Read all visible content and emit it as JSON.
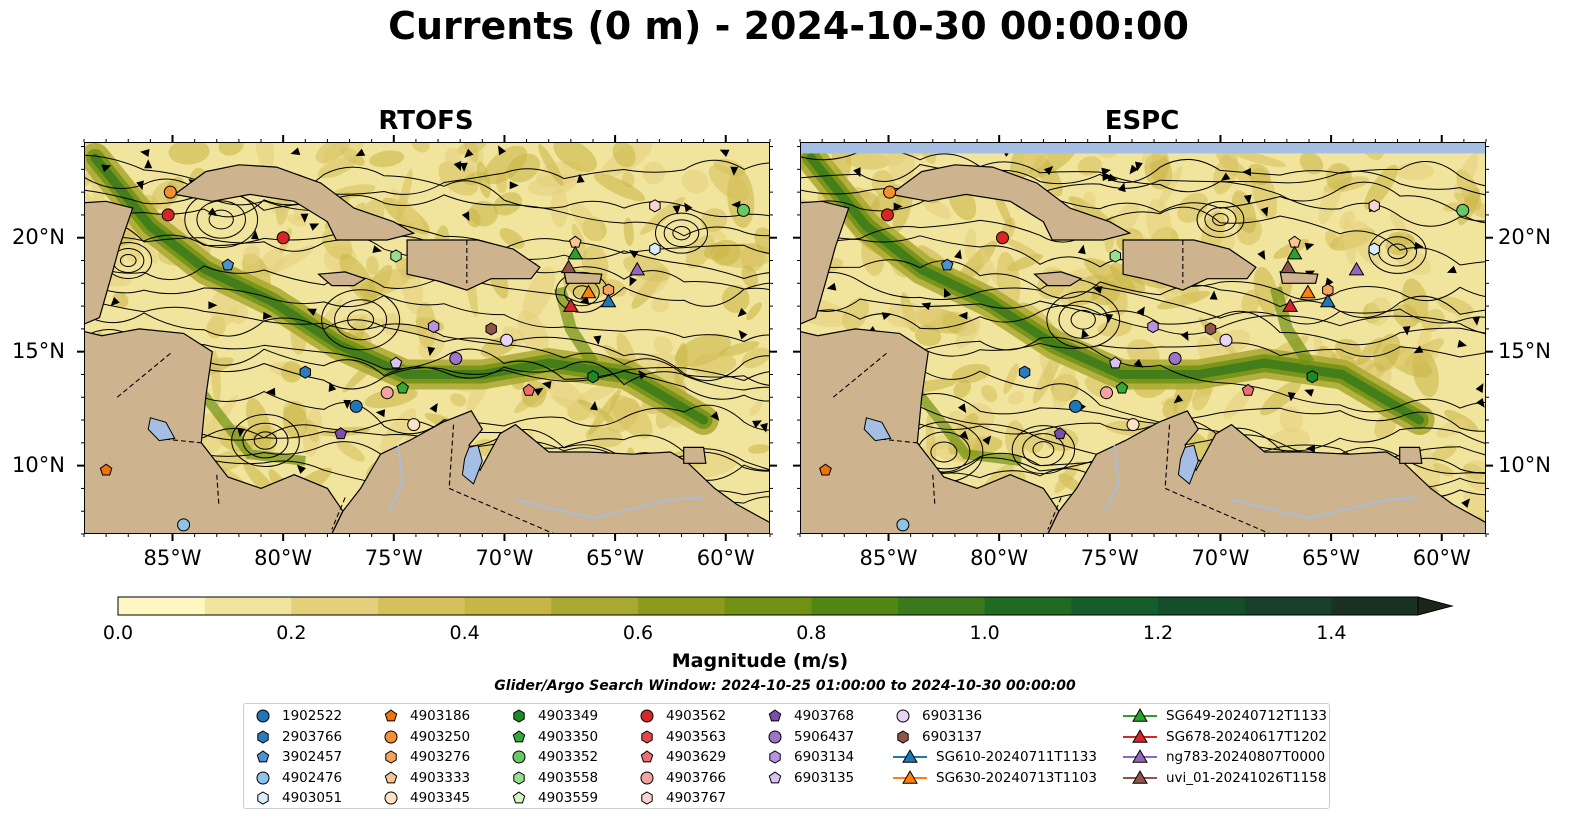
{
  "title": "Currents (0 m) - 2024-10-30 00:00:00",
  "panels": [
    {
      "name": "rtofs",
      "title": "RTOFS"
    },
    {
      "name": "espc",
      "title": "ESPC"
    }
  ],
  "map": {
    "lon_range": [
      -89,
      -58
    ],
    "lat_range": [
      7,
      24.2
    ],
    "lon_ticks": [
      "85°W",
      "80°W",
      "75°W",
      "70°W",
      "65°W",
      "60°W"
    ],
    "lat_ticks": [
      "20°N",
      "15°N",
      "10°N"
    ],
    "land_color": "#cdb48f",
    "water_color": "#a4bfe3"
  },
  "colorbar": {
    "label": "Magnitude (m/s)",
    "range": [
      0.0,
      1.5
    ],
    "ticks": [
      "0.0",
      "0.2",
      "0.4",
      "0.6",
      "0.8",
      "1.0",
      "1.2",
      "1.4"
    ],
    "extend": "max",
    "colors": [
      "#fdf8c2",
      "#f1e49c",
      "#e4cf7b",
      "#d6c05c",
      "#c8b546",
      "#a9a830",
      "#8d9a1c",
      "#709113",
      "#528714",
      "#3a7a1c",
      "#206b22",
      "#155d2a",
      "#154f2a",
      "#18402a",
      "#1a3222",
      "#1c261a"
    ]
  },
  "search_window": "Glider/Argo Search Window: 2024-10-25 01:00:00 to 2024-10-30 00:00:00",
  "legend": {
    "columns": [
      [
        {
          "label": "1902522",
          "marker": "circle",
          "color": "#1f77b4"
        },
        {
          "label": "2903766",
          "marker": "hexagon",
          "color": "#2a7bbd"
        },
        {
          "label": "3902457",
          "marker": "pentagon",
          "color": "#4c92cf"
        },
        {
          "label": "4902476",
          "marker": "circle",
          "color": "#8fc3ea"
        },
        {
          "label": "4903051",
          "marker": "hexagon",
          "color": "#d9eefb"
        }
      ],
      [
        {
          "label": "4903186",
          "marker": "pentagon",
          "color": "#f0720a"
        },
        {
          "label": "4903250",
          "marker": "circle",
          "color": "#f39031"
        },
        {
          "label": "4903276",
          "marker": "hexagon",
          "color": "#f7a35c"
        },
        {
          "label": "4903333",
          "marker": "pentagon",
          "color": "#f8c493"
        },
        {
          "label": "4903345",
          "marker": "circle",
          "color": "#fde3c6"
        }
      ],
      [
        {
          "label": "4903349",
          "marker": "hexagon",
          "color": "#1b8a27"
        },
        {
          "label": "4903350",
          "marker": "pentagon",
          "color": "#35a838"
        },
        {
          "label": "4903352",
          "marker": "circle",
          "color": "#67c864"
        },
        {
          "label": "4903558",
          "marker": "hexagon",
          "color": "#98de90"
        },
        {
          "label": "4903559",
          "marker": "pentagon",
          "color": "#d5f5c9"
        }
      ],
      [
        {
          "label": "4903562",
          "marker": "circle",
          "color": "#d62728"
        },
        {
          "label": "4903563",
          "marker": "hexagon",
          "color": "#e0474a"
        },
        {
          "label": "4903629",
          "marker": "pentagon",
          "color": "#ea6f71"
        },
        {
          "label": "4903766",
          "marker": "circle",
          "color": "#f4a3a2"
        },
        {
          "label": "4903767",
          "marker": "hexagon",
          "color": "#fbd3d2"
        }
      ],
      [
        {
          "label": "4903768",
          "marker": "pentagon",
          "color": "#7a4fa6"
        },
        {
          "label": "5906437",
          "marker": "circle",
          "color": "#9b75c9"
        },
        {
          "label": "6903134",
          "marker": "hexagon",
          "color": "#b993e0"
        },
        {
          "label": "6903135",
          "marker": "pentagon",
          "color": "#d9c2f2"
        }
      ],
      [
        {
          "label": "6903136",
          "marker": "circle",
          "color": "#e8d5f5"
        },
        {
          "label": "6903137",
          "marker": "hexagon",
          "color": "#8c564b"
        },
        {
          "label": "SG610-20240711T1133",
          "marker": "triangle",
          "color": "#1f77b4"
        },
        {
          "label": "SG630-20240713T1103",
          "marker": "triangle",
          "color": "#ff7f0e"
        }
      ],
      [
        {
          "label": "SG649-20240712T1133",
          "marker": "triangle",
          "color": "#2ca02c"
        },
        {
          "label": "SG678-20240617T1202",
          "marker": "triangle",
          "color": "#d62728"
        },
        {
          "label": "ng783-20240807T0000",
          "marker": "triangle",
          "color": "#9467bd"
        },
        {
          "label": "uvi_01-20241026T1158",
          "marker": "triangle",
          "color": "#8c564b"
        }
      ]
    ]
  },
  "observations": [
    {
      "id": "4903250",
      "lon": -85.1,
      "lat": 22.0
    },
    {
      "id": "4903562",
      "lon": -85.2,
      "lat": 21.0
    },
    {
      "id": "4903562",
      "lon": -80.0,
      "lat": 20.0
    },
    {
      "id": "3902457",
      "lon": -82.5,
      "lat": 18.8
    },
    {
      "id": "4903558",
      "lon": -74.9,
      "lat": 19.2
    },
    {
      "id": "4903333",
      "lon": -66.8,
      "lat": 19.8
    },
    {
      "id": "4903767",
      "lon": -63.2,
      "lat": 21.4
    },
    {
      "id": "4903051",
      "lon": -63.2,
      "lat": 19.5
    },
    {
      "id": "4903352",
      "lon": -59.2,
      "lat": 21.2
    },
    {
      "id": "6903134",
      "lon": -73.2,
      "lat": 16.1
    },
    {
      "id": "6903137",
      "lon": -70.6,
      "lat": 16.0
    },
    {
      "id": "6903136",
      "lon": -69.9,
      "lat": 15.5
    },
    {
      "id": "5906437",
      "lon": -72.2,
      "lat": 14.7
    },
    {
      "id": "6903135",
      "lon": -74.9,
      "lat": 14.5
    },
    {
      "id": "2903766",
      "lon": -79.0,
      "lat": 14.1
    },
    {
      "id": "4903350",
      "lon": -74.6,
      "lat": 13.4
    },
    {
      "id": "4903766",
      "lon": -75.3,
      "lat": 13.2
    },
    {
      "id": "1902522",
      "lon": -76.7,
      "lat": 12.6
    },
    {
      "id": "4903629",
      "lon": -68.9,
      "lat": 13.3
    },
    {
      "id": "4903349",
      "lon": -66.0,
      "lat": 13.9
    },
    {
      "id": "4903345",
      "lon": -74.1,
      "lat": 11.8
    },
    {
      "id": "4903768",
      "lon": -77.4,
      "lat": 11.4
    },
    {
      "id": "4903186",
      "lon": -88.0,
      "lat": 9.8
    },
    {
      "id": "4902476",
      "lon": -84.5,
      "lat": 7.4
    },
    {
      "id": "4903276",
      "lon": -65.3,
      "lat": 17.7
    },
    {
      "id": "SG649-20240712T1133",
      "lon": -66.8,
      "lat": 19.3
    },
    {
      "id": "uvi_01-20241026T1158",
      "lon": -67.1,
      "lat": 18.7
    },
    {
      "id": "SG630-20240713T1103",
      "lon": -66.2,
      "lat": 17.6
    },
    {
      "id": "SG678-20240617T1202",
      "lon": -67.0,
      "lat": 17.0
    },
    {
      "id": "SG610-20240711T1133",
      "lon": -65.3,
      "lat": 17.2
    },
    {
      "id": "ng783-20240807T0000",
      "lon": -64.0,
      "lat": 18.6
    }
  ]
}
